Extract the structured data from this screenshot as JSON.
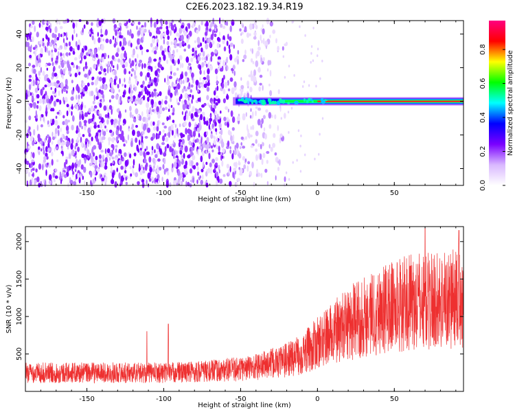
{
  "title": "C2E6.2023.182.19.34.R19",
  "chart_data": [
    {
      "type": "heatmap",
      "title": "C2E6.2023.182.19.34.R19",
      "xlabel": "Height of straight line (km)",
      "ylabel": "Frequency (Hz)",
      "xlim": [
        -190,
        95
      ],
      "ylim": [
        -50,
        48
      ],
      "xticks": [
        -150,
        -100,
        -50,
        0,
        50
      ],
      "yticks": [
        -40,
        -20,
        0,
        20,
        40
      ],
      "colorbar": {
        "label": "Normalized spectral amplitude",
        "range": [
          0,
          0.97
        ],
        "ticks": [
          0.0,
          0.2,
          0.4,
          0.6,
          0.8
        ],
        "colors": [
          "#ffffff",
          "#d9b8ff",
          "#7a00ff",
          "#0000ff",
          "#00ffff",
          "#00ff00",
          "#ffff00",
          "#ff0000",
          "#ff0080"
        ]
      },
      "features": [
        {
          "x_range": [
            -190,
            -25
          ],
          "description": "broadband noise"
        },
        {
          "x_range": [
            -55,
            95
          ],
          "frequency": 0,
          "description": "narrowband line near 0 Hz"
        }
      ]
    },
    {
      "type": "line",
      "xlabel": "Height of straight line (km)",
      "ylabel": "SNR (10 * v/v)",
      "xlim": [
        -190,
        95
      ],
      "ylim": [
        0,
        2200
      ],
      "xticks": [
        -150,
        -100,
        -50,
        0,
        50
      ],
      "yticks": [
        500,
        1000,
        1500,
        2000
      ],
      "color": "#ee3030",
      "trend": {
        "x": [
          -190,
          -150,
          -100,
          -70,
          -50,
          -40,
          -30,
          -20,
          -10,
          0,
          10,
          20,
          30,
          40,
          50,
          60,
          70,
          80,
          95
        ],
        "y": [
          250,
          250,
          250,
          270,
          300,
          330,
          370,
          420,
          500,
          640,
          780,
          900,
          1000,
          1080,
          1140,
          1180,
          1200,
          1220,
          1250
        ]
      },
      "spikes": [
        {
          "x": -111,
          "y": 800
        },
        {
          "x": -97,
          "y": 900
        },
        {
          "x": 70,
          "y": 2180
        },
        {
          "x": 92,
          "y": 2150
        }
      ]
    }
  ]
}
